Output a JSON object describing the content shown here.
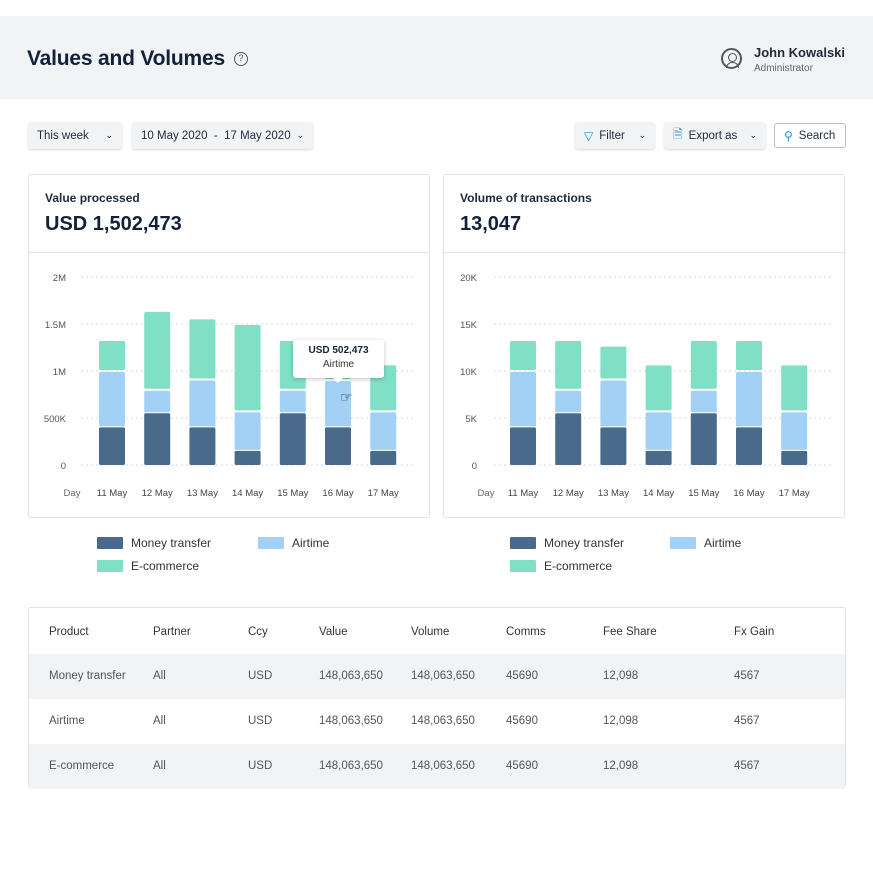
{
  "header": {
    "title": "Values and Volumes",
    "user_name": "John Kowalski",
    "user_role": "Administrator"
  },
  "toolbar": {
    "period": "This week",
    "date_range": "10 May 2020  -  17 May 2020",
    "filter": "Filter",
    "export": "Export as",
    "search": "Search"
  },
  "colors": {
    "money_transfer": "#4a6a8c",
    "airtime": "#a3d0f5",
    "ecommerce": "#7fe0c6"
  },
  "cards": [
    {
      "label": "Value processed",
      "value": "USD 1,502,473",
      "tooltip": {
        "value": "USD 502,473",
        "series": "Airtime"
      }
    },
    {
      "label": "Volume of transactions",
      "value": "13,047"
    }
  ],
  "legend": [
    "Money transfer",
    "Airtime",
    "E-commerce"
  ],
  "chart_data": [
    {
      "type": "bar",
      "stacked": true,
      "xlabel": "Day",
      "categories": [
        "11 May",
        "12 May",
        "13 May",
        "14 May",
        "15 May",
        "16 May",
        "17 May"
      ],
      "yticks": [
        "0",
        "500K",
        "1M",
        "1.5M",
        "2M"
      ],
      "ylim": [
        0,
        2000000
      ],
      "grid": true,
      "legend": "bottom",
      "series": [
        {
          "name": "Money transfer",
          "values": [
            400000,
            550000,
            400000,
            150000,
            550000,
            400000,
            150000
          ]
        },
        {
          "name": "Airtime",
          "values": [
            600000,
            250000,
            510000,
            420000,
            250000,
            502473,
            420000
          ]
        },
        {
          "name": "E-commerce",
          "values": [
            330000,
            840000,
            650000,
            930000,
            530000,
            430000,
            500000
          ]
        }
      ]
    },
    {
      "type": "bar",
      "stacked": true,
      "xlabel": "Day",
      "categories": [
        "11 May",
        "12 May",
        "13 May",
        "14 May",
        "15 May",
        "16 May",
        "17 May"
      ],
      "yticks": [
        "0",
        "5K",
        "10K",
        "15K",
        "20K"
      ],
      "ylim": [
        0,
        20000
      ],
      "grid": true,
      "legend": "bottom",
      "series": [
        {
          "name": "Money transfer",
          "values": [
            4000,
            5500,
            4000,
            1500,
            5500,
            4000,
            1500
          ]
        },
        {
          "name": "Airtime",
          "values": [
            6000,
            2500,
            5100,
            4200,
            2500,
            6000,
            4200
          ]
        },
        {
          "name": "E-commerce",
          "values": [
            3300,
            5300,
            3600,
            5000,
            5300,
            3300,
            5000
          ]
        }
      ]
    }
  ],
  "table": {
    "columns": [
      "Product",
      "Partner",
      "Ccy",
      "Value",
      "Volume",
      "Comms",
      "Fee Share",
      "Fx Gain"
    ],
    "rows": [
      [
        "Money transfer",
        "All",
        "USD",
        "148,063,650",
        "148,063,650",
        "45690",
        "12,098",
        "4567"
      ],
      [
        "Airtime",
        "All",
        "USD",
        "148,063,650",
        "148,063,650",
        "45690",
        "12,098",
        "4567"
      ],
      [
        "E-commerce",
        "All",
        "USD",
        "148,063,650",
        "148,063,650",
        "45690",
        "12,098",
        "4567"
      ]
    ]
  }
}
